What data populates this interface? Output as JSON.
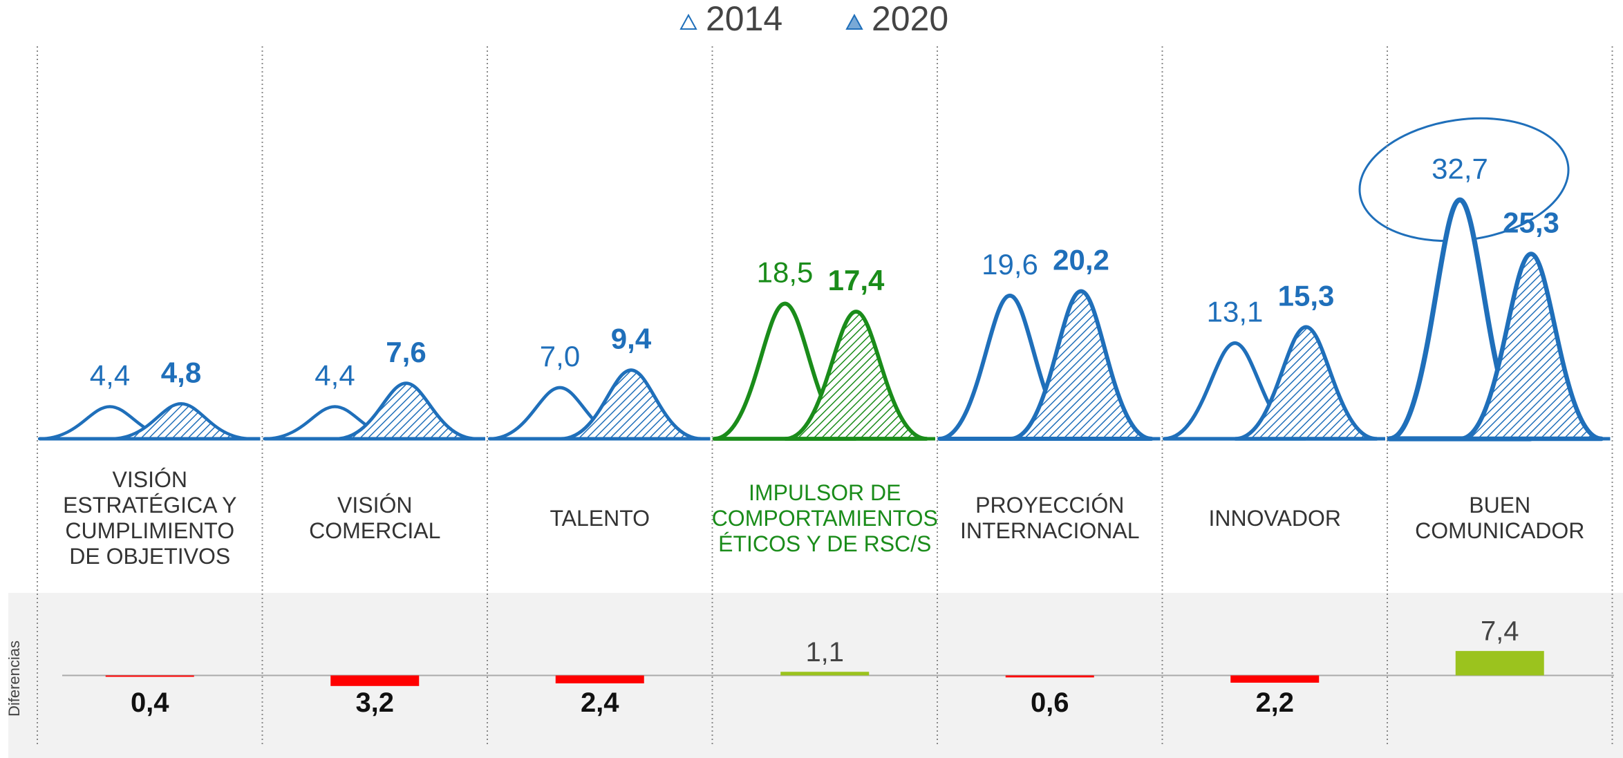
{
  "chart_data": [
    {
      "type": "peak",
      "categories": [
        "VISIÓN ESTRATÉGICA Y CUMPLIMIENTO DE OBJETIVOS",
        "VISIÓN COMERCIAL",
        "TALENTO",
        "IMPULSOR DE COMPORTAMIENTOS ÉTICOS Y DE RSC/S",
        "PROYECCIÓN INTERNACIONAL",
        "INNOVADOR",
        "BUEN COMUNICADOR"
      ],
      "category_colors": [
        "#1f6fba",
        "#1f6fba",
        "#1f6fba",
        "#1a8c1a",
        "#1f6fba",
        "#1f6fba",
        "#1f6fba"
      ],
      "series": [
        {
          "name": "2014",
          "color": "#1f6fba",
          "values": [
            4.4,
            4.4,
            7.0,
            18.5,
            19.6,
            13.1,
            32.7
          ],
          "value_labels": [
            "4,4",
            "4,4",
            "7,0",
            "18,5",
            "19,6",
            "13,1",
            "32,7"
          ]
        },
        {
          "name": "2020",
          "color": "#1f6fba",
          "values": [
            4.8,
            7.6,
            9.4,
            17.4,
            20.2,
            15.3,
            25.3
          ],
          "value_labels": [
            "4,8",
            "7,6",
            "9,4",
            "17,4",
            "20,2",
            "15,3",
            "25,3"
          ]
        }
      ],
      "ylim": [
        0,
        35
      ],
      "legend": "top"
    },
    {
      "type": "bar",
      "y_label": "Diferencias",
      "values": [
        -0.4,
        -3.2,
        -2.4,
        1.1,
        -0.6,
        -2.2,
        7.4
      ],
      "value_labels": [
        "0,4",
        "3,2",
        "2,4",
        "1,1",
        "0,6",
        "2,2",
        "7,4"
      ],
      "colors": [
        "#ff0000",
        "#ff0000",
        "#ff0000",
        "#9bc31e",
        "#ff0000",
        "#ff0000",
        "#9bc31e"
      ],
      "ylim": [
        -25,
        25
      ]
    }
  ]
}
